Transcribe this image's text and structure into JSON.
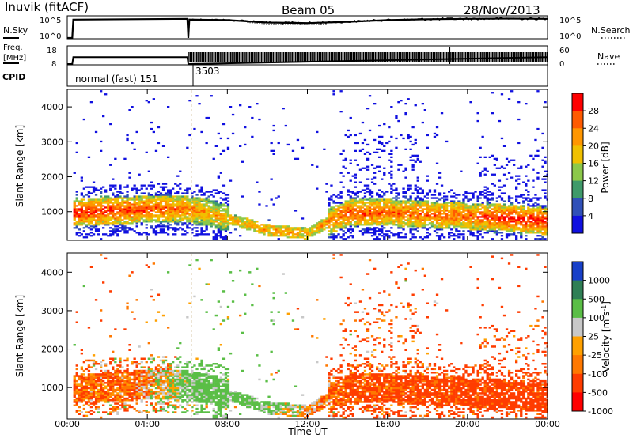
{
  "header": {
    "station": "Inuvik (fitACF)",
    "beam": "Beam 05",
    "date": "28/Nov/2013"
  },
  "noise_panel": {
    "left_label": "N.Sky",
    "right_label": "N.Search",
    "left_ticks": [
      "10^5",
      "10^0"
    ],
    "right_ticks": [
      "10^5",
      "10^0"
    ]
  },
  "freq_panel": {
    "left_label": "Freq.",
    "left_unit": "[MHz]",
    "left_ticks": [
      "18",
      "8"
    ],
    "right_label": "Nave",
    "right_ticks": [
      "60",
      "0"
    ]
  },
  "cpid_panel": {
    "label": "CPID",
    "segments": [
      {
        "text": "normal (fast) 151",
        "start_hour": 0.0,
        "end_hour": 6.0
      },
      {
        "text": "3503",
        "start_hour": 6.0,
        "end_hour": 24.0
      }
    ]
  },
  "power_panel": {
    "ylabel": "Slant Range [km]",
    "yticks": [
      "4000",
      "3000",
      "2000",
      "1000"
    ],
    "colorbar_label": "Power [dB]",
    "colorbar_ticks": [
      "28",
      "24",
      "20",
      "16",
      "12",
      "8",
      "4"
    ]
  },
  "velocity_panel": {
    "ylabel": "Slant Range [km]",
    "yticks": [
      "4000",
      "3000",
      "2000",
      "1000"
    ],
    "colorbar_label": "Velocity [m s",
    "colorbar_label_sup": "-1",
    "colorbar_label_end": "]",
    "colorbar_ticks": [
      "1000",
      "500",
      "100",
      "25",
      "-25",
      "-100",
      "-500",
      "-1000"
    ]
  },
  "xaxis": {
    "label": "Time UT",
    "ticks": [
      "00:00",
      "04:00",
      "08:00",
      "12:00",
      "16:00",
      "20:00",
      "00:00"
    ]
  },
  "colors": {
    "power_scale": [
      "#ff0000",
      "#ff5a00",
      "#ff9600",
      "#f0c000",
      "#8cc84a",
      "#3f9a6a",
      "#3050b8",
      "#1010e0"
    ],
    "velocity_scale": [
      "#1840c8",
      "#2f7f55",
      "#5abe46",
      "#c8c8c8",
      "#ffa000",
      "#ff7800",
      "#ff3c00",
      "#ff0000"
    ]
  },
  "chart_data": [
    {
      "type": "line",
      "title": "N.Sky / N.Search",
      "yscale": "log",
      "ylim": [
        1,
        100000
      ],
      "x_range_hours": [
        0,
        24
      ],
      "series": [
        {
          "name": "N.Sky",
          "x": [
            0,
            0.25,
            0.3,
            6.0,
            6.05,
            6.1,
            8,
            10,
            12,
            14,
            16,
            18,
            20,
            22,
            24
          ],
          "y": [
            1,
            1,
            20000,
            30000,
            1,
            20000,
            15000,
            4000,
            3000,
            6000,
            15000,
            25000,
            30000,
            35000,
            30000
          ]
        }
      ]
    },
    {
      "type": "line",
      "title": "Freq. / Nave",
      "x_range_hours": [
        0,
        24
      ],
      "series": [
        {
          "name": "Freq.",
          "x": [
            0,
            0.25,
            0.3,
            6.0,
            6.05,
            24
          ],
          "y": [
            8,
            8,
            12,
            12,
            8,
            12
          ]
        },
        {
          "name": "Nave",
          "x": [
            6.05,
            24
          ],
          "y": [
            30,
            30
          ]
        }
      ]
    },
    {
      "type": "heatmap",
      "title": "Power",
      "xlabel": "Time UT",
      "ylabel": "Slant Range [km]",
      "x_range_hours": [
        0,
        24
      ],
      "ylim": [
        180,
        4500
      ],
      "zlim": [
        0,
        30
      ],
      "zunit": "dB",
      "band_center_km": [
        {
          "hour": 0.5,
          "value": 950
        },
        {
          "hour": 2,
          "value": 1000
        },
        {
          "hour": 4,
          "value": 1050
        },
        {
          "hour": 6,
          "value": 1050
        },
        {
          "hour": 7,
          "value": 950
        },
        {
          "hour": 8.5,
          "value": 700
        },
        {
          "hour": 10,
          "value": 450
        },
        {
          "hour": 12,
          "value": 350
        },
        {
          "hour": 13,
          "value": 700
        },
        {
          "hour": 14,
          "value": 950
        },
        {
          "hour": 16,
          "value": 950
        },
        {
          "hour": 18,
          "value": 900
        },
        {
          "hour": 20,
          "value": 850
        },
        {
          "hour": 22,
          "value": 800
        },
        {
          "hour": 24,
          "value": 700
        }
      ],
      "band_peak_db": [
        {
          "hour": 0.5,
          "value": 28
        },
        {
          "hour": 3,
          "value": 27
        },
        {
          "hour": 6,
          "value": 22
        },
        {
          "hour": 8,
          "value": 18
        },
        {
          "hour": 10,
          "value": 20
        },
        {
          "hour": 12,
          "value": 18
        },
        {
          "hour": 14,
          "value": 26
        },
        {
          "hour": 17,
          "value": 24
        },
        {
          "hour": 20,
          "value": 24
        },
        {
          "hour": 22,
          "value": 28
        },
        {
          "hour": 24,
          "value": 28
        }
      ]
    },
    {
      "type": "heatmap",
      "title": "Velocity",
      "xlabel": "Time UT",
      "ylabel": "Slant Range [km]",
      "x_range_hours": [
        0,
        24
      ],
      "ylim": [
        180,
        4500
      ],
      "zlim": [
        -1000,
        1000
      ],
      "zunit": "m s-1",
      "band_mean_velocity": [
        {
          "hour": 0.5,
          "value": -100
        },
        {
          "hour": 3,
          "value": -100
        },
        {
          "hour": 5.5,
          "value": 100
        },
        {
          "hour": 6.5,
          "value": 200
        },
        {
          "hour": 8,
          "value": 200
        },
        {
          "hour": 10,
          "value": 150
        },
        {
          "hour": 12,
          "value": 0
        },
        {
          "hour": 14,
          "value": -150
        },
        {
          "hour": 17,
          "value": -150
        },
        {
          "hour": 20,
          "value": -200
        },
        {
          "hour": 24,
          "value": -200
        }
      ]
    }
  ]
}
